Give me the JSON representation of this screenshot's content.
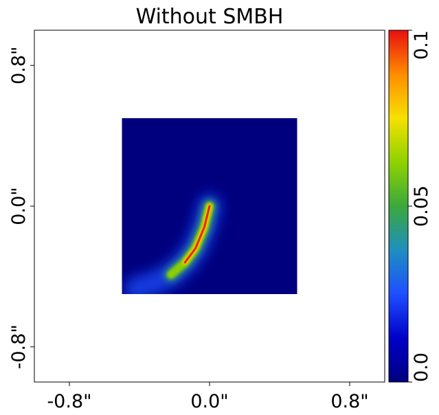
{
  "chart_data": {
    "type": "heatmap",
    "title": "Without SMBH",
    "xlabel": "",
    "ylabel": "",
    "xlim": [
      -1.0,
      1.0
    ],
    "ylim": [
      -1.0,
      1.0
    ],
    "x_ticks": [
      -0.8,
      0.0,
      0.8
    ],
    "y_ticks": [
      -0.8,
      0.0,
      0.8
    ],
    "x_tick_labels": [
      "-0.8\"",
      "0.0\"",
      "0.8\""
    ],
    "y_tick_labels": [
      "-0.8\"",
      "0.0\"",
      "0.8\""
    ],
    "image_extent": {
      "x": [
        -0.5,
        0.5
      ],
      "y": [
        -0.5,
        0.5
      ]
    },
    "image_background_value": 0.0,
    "feature": {
      "description": "curved arc of emission from center toward lower-left",
      "spine_points": [
        {
          "x": 0.0,
          "y": 0.0,
          "value": 0.08
        },
        {
          "x": -0.03,
          "y": -0.12,
          "value": 0.1
        },
        {
          "x": -0.08,
          "y": -0.24,
          "value": 0.09
        },
        {
          "x": -0.14,
          "y": -0.32,
          "value": 0.07
        },
        {
          "x": -0.22,
          "y": -0.39,
          "value": 0.05
        },
        {
          "x": -0.32,
          "y": -0.44,
          "value": 0.03
        },
        {
          "x": -0.42,
          "y": -0.47,
          "value": 0.02
        }
      ]
    },
    "colorbar": {
      "range": [
        0.0,
        0.1
      ],
      "ticks": [
        0.0,
        0.05,
        0.1
      ],
      "tick_labels": [
        "0.0",
        "0.05",
        "0.1"
      ],
      "colormap": [
        "#00007f",
        "#0000c8",
        "#1f4fff",
        "#1e8fbf",
        "#3ca83c",
        "#8ed200",
        "#f5e100",
        "#ff8c00",
        "#e81010"
      ]
    }
  }
}
